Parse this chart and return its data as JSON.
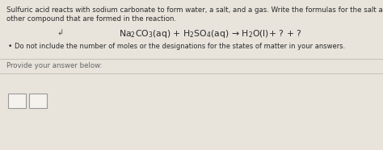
{
  "bg_color": "#e8e4dc",
  "upper_bg": "#e8e4dc",
  "lower_bg": "#e8e4dc",
  "title_text1": "Sulfuric acid reacts with sodium carbonate to form water, a salt, and a gas. Write the formulas for the salt and",
  "title_text2": "other compound that are formed in the reaction.",
  "equation": "Na$_{2}$CO$_{3}$(aq) + H$_{2}$SO$_{4}$(aq) → H$_{2}$O(l)+ ? + ?",
  "bullet_text": "Do not include the number of moles or the designations for the states of matter in your answers.",
  "answer_label": "Provide your answer below:",
  "text_color": "#2a2a2a",
  "line_color": "#c8c4bc",
  "cursor_char": "↲"
}
